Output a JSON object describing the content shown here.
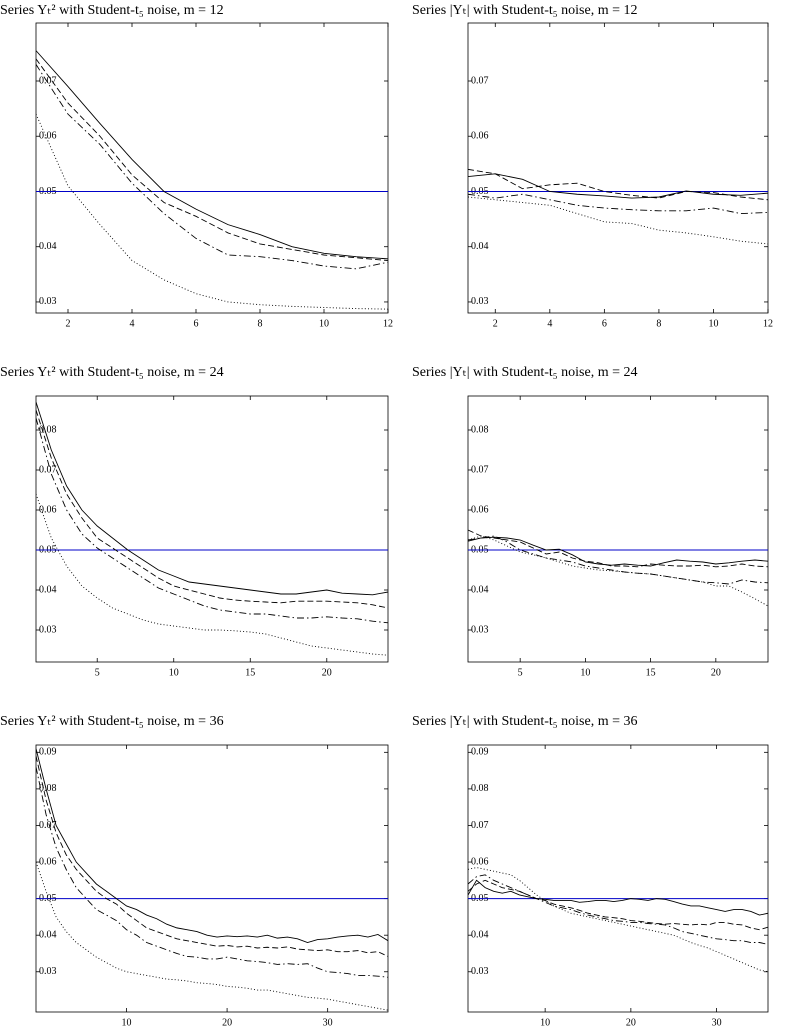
{
  "chart_data": [
    {
      "type": "line",
      "title": "Series Yₜ²  with Student-t₅ noise, m = 12",
      "x": [
        1,
        2,
        3,
        4,
        5,
        6,
        7,
        8,
        9,
        10,
        11,
        12
      ],
      "xlim": [
        1,
        12
      ],
      "xticks": [
        2,
        4,
        6,
        8,
        10,
        12
      ],
      "ylim": [
        0.028,
        0.0805
      ],
      "yticks": [
        0.03,
        0.04,
        0.05,
        0.06,
        0.07
      ],
      "reference_line": {
        "value": 0.05,
        "color": "#0000c8"
      },
      "series": [
        {
          "color": "#000000",
          "style": "solid",
          "values": [
            0.0755,
            0.069,
            0.0623,
            0.0558,
            0.05,
            0.0468,
            0.044,
            0.0422,
            0.04,
            0.0388,
            0.0382,
            0.0378
          ]
        },
        {
          "color": "#000000",
          "style": "dashed",
          "values": [
            0.074,
            0.066,
            0.06,
            0.053,
            0.048,
            0.0455,
            0.0425,
            0.0405,
            0.0395,
            0.0385,
            0.038,
            0.0375
          ]
        },
        {
          "color": "#000000",
          "style": "dashdot",
          "values": [
            0.073,
            0.064,
            0.0585,
            0.0515,
            0.046,
            0.0415,
            0.0385,
            0.0382,
            0.0375,
            0.0365,
            0.036,
            0.0372
          ]
        },
        {
          "color": "#000000",
          "style": "dotted",
          "values": [
            0.064,
            0.051,
            0.044,
            0.0375,
            0.034,
            0.0315,
            0.03,
            0.0295,
            0.0292,
            0.029,
            0.0288,
            0.0287
          ]
        }
      ]
    },
    {
      "type": "line",
      "title": "Series |Yₜ| with Student-t₅ noise, m = 12",
      "x": [
        1,
        2,
        3,
        4,
        5,
        6,
        7,
        8,
        9,
        10,
        11,
        12
      ],
      "xlim": [
        1,
        12
      ],
      "xticks": [
        2,
        4,
        6,
        8,
        10,
        12
      ],
      "ylim": [
        0.028,
        0.0805
      ],
      "yticks": [
        0.03,
        0.04,
        0.05,
        0.06,
        0.07
      ],
      "reference_line": {
        "value": 0.05,
        "color": "#0000c8"
      },
      "series": [
        {
          "color": "#000000",
          "style": "solid",
          "values": [
            0.0527,
            0.0532,
            0.0522,
            0.05,
            0.0495,
            0.0492,
            0.0488,
            0.049,
            0.0501,
            0.0495,
            0.0493,
            0.0497
          ]
        },
        {
          "color": "#000000",
          "style": "dashed",
          "values": [
            0.054,
            0.0532,
            0.0505,
            0.0512,
            0.0515,
            0.05,
            0.0493,
            0.0488,
            0.05,
            0.0498,
            0.049,
            0.0485
          ]
        },
        {
          "color": "#000000",
          "style": "dashdot",
          "values": [
            0.0495,
            0.0488,
            0.0495,
            0.0485,
            0.0475,
            0.047,
            0.0467,
            0.0465,
            0.0465,
            0.047,
            0.046,
            0.0462
          ]
        },
        {
          "color": "#000000",
          "style": "dotted",
          "values": [
            0.049,
            0.0485,
            0.048,
            0.0475,
            0.046,
            0.0445,
            0.0442,
            0.043,
            0.0425,
            0.0418,
            0.041,
            0.0405
          ]
        }
      ]
    },
    {
      "type": "line",
      "title": "Series Yₜ²  with Student-t₅ noise, m = 24",
      "x": [
        1,
        2,
        3,
        4,
        5,
        6,
        7,
        8,
        9,
        10,
        11,
        12,
        13,
        14,
        15,
        16,
        17,
        18,
        19,
        20,
        21,
        22,
        23,
        24
      ],
      "xlim": [
        1,
        24
      ],
      "xticks": [
        5,
        10,
        15,
        20
      ],
      "ylim": [
        0.022,
        0.0885
      ],
      "yticks": [
        0.03,
        0.04,
        0.05,
        0.06,
        0.07,
        0.08
      ],
      "reference_line": {
        "value": 0.05,
        "color": "#0000c8"
      },
      "series": [
        {
          "color": "#000000",
          "style": "solid",
          "values": [
            0.087,
            0.075,
            0.066,
            0.06,
            0.056,
            0.053,
            0.05,
            0.0475,
            0.045,
            0.0435,
            0.042,
            0.0415,
            0.041,
            0.0405,
            0.04,
            0.0395,
            0.039,
            0.039,
            0.0395,
            0.04,
            0.0392,
            0.039,
            0.0388,
            0.0395
          ]
        },
        {
          "color": "#000000",
          "style": "dashed",
          "values": [
            0.085,
            0.073,
            0.064,
            0.058,
            0.053,
            0.0505,
            0.048,
            0.0455,
            0.043,
            0.041,
            0.04,
            0.039,
            0.038,
            0.0375,
            0.0372,
            0.037,
            0.0368,
            0.0372,
            0.0372,
            0.0372,
            0.037,
            0.0368,
            0.0363,
            0.0355
          ]
        },
        {
          "color": "#000000",
          "style": "dashdot",
          "values": [
            0.083,
            0.069,
            0.06,
            0.054,
            0.0505,
            0.048,
            0.0455,
            0.043,
            0.0405,
            0.039,
            0.0375,
            0.036,
            0.035,
            0.0345,
            0.034,
            0.034,
            0.0335,
            0.033,
            0.033,
            0.0333,
            0.033,
            0.0328,
            0.0322,
            0.0318
          ]
        },
        {
          "color": "#000000",
          "style": "dotted",
          "values": [
            0.064,
            0.053,
            0.046,
            0.041,
            0.038,
            0.0355,
            0.034,
            0.0325,
            0.0315,
            0.031,
            0.0305,
            0.03,
            0.03,
            0.0298,
            0.0295,
            0.029,
            0.028,
            0.027,
            0.026,
            0.0255,
            0.025,
            0.0245,
            0.024,
            0.0237
          ]
        }
      ]
    },
    {
      "type": "line",
      "title": "Series |Yₜ| with Student-t₅ noise, m = 24",
      "x": [
        1,
        2,
        3,
        4,
        5,
        6,
        7,
        8,
        9,
        10,
        11,
        12,
        13,
        14,
        15,
        16,
        17,
        18,
        19,
        20,
        21,
        22,
        23,
        24
      ],
      "xlim": [
        1,
        24
      ],
      "xticks": [
        5,
        10,
        15,
        20
      ],
      "ylim": [
        0.022,
        0.0885
      ],
      "yticks": [
        0.03,
        0.04,
        0.05,
        0.06,
        0.07,
        0.08
      ],
      "reference_line": {
        "value": 0.05,
        "color": "#0000c8"
      },
      "series": [
        {
          "color": "#000000",
          "style": "solid",
          "values": [
            0.0522,
            0.053,
            0.0532,
            0.053,
            0.0525,
            0.0512,
            0.05,
            0.0502,
            0.0488,
            0.047,
            0.0465,
            0.0462,
            0.0465,
            0.0462,
            0.046,
            0.0468,
            0.0475,
            0.0472,
            0.047,
            0.0465,
            0.0468,
            0.0472,
            0.0475,
            0.0472
          ]
        },
        {
          "color": "#000000",
          "style": "dashed",
          "values": [
            0.055,
            0.0535,
            0.053,
            0.0525,
            0.052,
            0.0505,
            0.049,
            0.0495,
            0.048,
            0.0472,
            0.0468,
            0.046,
            0.046,
            0.0458,
            0.0465,
            0.0462,
            0.046,
            0.046,
            0.0462,
            0.0458,
            0.046,
            0.0465,
            0.046,
            0.0458
          ]
        },
        {
          "color": "#000000",
          "style": "dashdot",
          "values": [
            0.0525,
            0.053,
            0.0535,
            0.052,
            0.05,
            0.049,
            0.048,
            0.0475,
            0.047,
            0.046,
            0.0455,
            0.045,
            0.0445,
            0.0442,
            0.044,
            0.0435,
            0.043,
            0.0425,
            0.042,
            0.0418,
            0.0415,
            0.0425,
            0.042,
            0.0418
          ]
        },
        {
          "color": "#000000",
          "style": "dotted",
          "values": [
            0.0525,
            0.0535,
            0.0525,
            0.051,
            0.0495,
            0.0488,
            0.048,
            0.047,
            0.046,
            0.0455,
            0.045,
            0.0448,
            0.0445,
            0.0442,
            0.044,
            0.0435,
            0.043,
            0.0425,
            0.042,
            0.041,
            0.041,
            0.0395,
            0.0378,
            0.036
          ]
        }
      ]
    },
    {
      "type": "line",
      "title": "Series Yₜ²  with Student-t₅ noise, m = 36",
      "x": [
        1,
        2,
        3,
        4,
        5,
        6,
        7,
        8,
        9,
        10,
        11,
        12,
        13,
        14,
        15,
        16,
        17,
        18,
        19,
        20,
        21,
        22,
        23,
        24,
        25,
        26,
        27,
        28,
        29,
        30,
        31,
        32,
        33,
        34,
        35,
        36
      ],
      "xlim": [
        1,
        36
      ],
      "xticks": [
        10,
        20,
        30
      ],
      "ylim": [
        0.019,
        0.092
      ],
      "yticks": [
        0.03,
        0.04,
        0.05,
        0.06,
        0.07,
        0.08,
        0.09
      ],
      "reference_line": {
        "value": 0.05,
        "color": "#0000c8"
      },
      "series": [
        {
          "color": "#000000",
          "style": "solid",
          "values": [
            0.091,
            0.08,
            0.07,
            0.065,
            0.06,
            0.057,
            0.054,
            0.052,
            0.05,
            0.048,
            0.047,
            0.0455,
            0.0445,
            0.043,
            0.042,
            0.0415,
            0.041,
            0.04,
            0.0395,
            0.0398,
            0.0396,
            0.0398,
            0.0395,
            0.04,
            0.0392,
            0.0395,
            0.039,
            0.038,
            0.0388,
            0.039,
            0.0395,
            0.0398,
            0.04,
            0.0395,
            0.0402,
            0.0385
          ]
        },
        {
          "color": "#000000",
          "style": "dashed",
          "values": [
            0.089,
            0.077,
            0.068,
            0.062,
            0.058,
            0.055,
            0.052,
            0.05,
            0.0485,
            0.046,
            0.044,
            0.042,
            0.041,
            0.04,
            0.039,
            0.0385,
            0.038,
            0.0375,
            0.037,
            0.0372,
            0.0368,
            0.037,
            0.0365,
            0.0367,
            0.0365,
            0.0368,
            0.0362,
            0.036,
            0.0358,
            0.036,
            0.0355,
            0.0355,
            0.0358,
            0.0352,
            0.0355,
            0.0342
          ]
        },
        {
          "color": "#000000",
          "style": "dashdot",
          "values": [
            0.086,
            0.073,
            0.064,
            0.058,
            0.053,
            0.05,
            0.047,
            0.0455,
            0.044,
            0.0415,
            0.04,
            0.038,
            0.037,
            0.036,
            0.035,
            0.0342,
            0.034,
            0.0335,
            0.0335,
            0.034,
            0.0335,
            0.033,
            0.0328,
            0.0325,
            0.032,
            0.0322,
            0.032,
            0.0322,
            0.031,
            0.03,
            0.0298,
            0.0295,
            0.029,
            0.029,
            0.0288,
            0.0285
          ]
        },
        {
          "color": "#000000",
          "style": "dotted",
          "values": [
            0.06,
            0.052,
            0.045,
            0.041,
            0.038,
            0.036,
            0.034,
            0.0325,
            0.031,
            0.03,
            0.0295,
            0.029,
            0.0285,
            0.028,
            0.0278,
            0.0275,
            0.027,
            0.0268,
            0.0265,
            0.026,
            0.0258,
            0.0255,
            0.025,
            0.025,
            0.0245,
            0.024,
            0.0235,
            0.023,
            0.0228,
            0.0225,
            0.022,
            0.0215,
            0.021,
            0.0205,
            0.02,
            0.0195
          ]
        }
      ]
    },
    {
      "type": "line",
      "title": "Series |Yₜ| with Student-t₅ noise, m = 36",
      "x": [
        1,
        2,
        3,
        4,
        5,
        6,
        7,
        8,
        9,
        10,
        11,
        12,
        13,
        14,
        15,
        16,
        17,
        18,
        19,
        20,
        21,
        22,
        23,
        24,
        25,
        26,
        27,
        28,
        29,
        30,
        31,
        32,
        33,
        34,
        35,
        36
      ],
      "xlim": [
        1,
        36
      ],
      "xticks": [
        10,
        20,
        30
      ],
      "ylim": [
        0.019,
        0.092
      ],
      "yticks": [
        0.03,
        0.04,
        0.05,
        0.06,
        0.07,
        0.08,
        0.09
      ],
      "reference_line": {
        "value": 0.05,
        "color": "#0000c8"
      },
      "series": [
        {
          "color": "#000000",
          "style": "solid",
          "values": [
            0.051,
            0.055,
            0.053,
            0.052,
            0.0515,
            0.052,
            0.051,
            0.0505,
            0.05,
            0.0498,
            0.0495,
            0.0495,
            0.0495,
            0.049,
            0.0492,
            0.0495,
            0.0495,
            0.0492,
            0.0495,
            0.05,
            0.0498,
            0.0495,
            0.05,
            0.0498,
            0.0492,
            0.0485,
            0.048,
            0.048,
            0.0475,
            0.047,
            0.0465,
            0.047,
            0.047,
            0.0465,
            0.0455,
            0.046
          ]
        },
        {
          "color": "#000000",
          "style": "dashed",
          "values": [
            0.052,
            0.054,
            0.055,
            0.054,
            0.053,
            0.0525,
            0.052,
            0.051,
            0.05,
            0.0495,
            0.0485,
            0.048,
            0.0475,
            0.0468,
            0.046,
            0.0455,
            0.045,
            0.0448,
            0.0445,
            0.044,
            0.0438,
            0.0435,
            0.0432,
            0.043,
            0.0432,
            0.043,
            0.0428,
            0.043,
            0.0428,
            0.0435,
            0.0435,
            0.043,
            0.0428,
            0.042,
            0.0415,
            0.0422
          ]
        },
        {
          "color": "#000000",
          "style": "dashdot",
          "values": [
            0.054,
            0.056,
            0.0565,
            0.055,
            0.054,
            0.053,
            0.052,
            0.051,
            0.05,
            0.049,
            0.048,
            0.0475,
            0.047,
            0.0462,
            0.0455,
            0.045,
            0.0445,
            0.044,
            0.0438,
            0.0435,
            0.0435,
            0.0432,
            0.043,
            0.0428,
            0.042,
            0.041,
            0.0405,
            0.04,
            0.0395,
            0.039,
            0.0388,
            0.0385,
            0.0385,
            0.038,
            0.038,
            0.0375
          ]
        },
        {
          "color": "#000000",
          "style": "dotted",
          "values": [
            0.058,
            0.0585,
            0.058,
            0.0575,
            0.057,
            0.0565,
            0.055,
            0.053,
            0.051,
            0.0495,
            0.048,
            0.047,
            0.046,
            0.0455,
            0.045,
            0.0445,
            0.044,
            0.0435,
            0.043,
            0.0425,
            0.042,
            0.0415,
            0.041,
            0.0405,
            0.04,
            0.039,
            0.038,
            0.0372,
            0.0365,
            0.0355,
            0.0345,
            0.0335,
            0.0325,
            0.0315,
            0.0305,
            0.03
          ]
        }
      ]
    }
  ]
}
